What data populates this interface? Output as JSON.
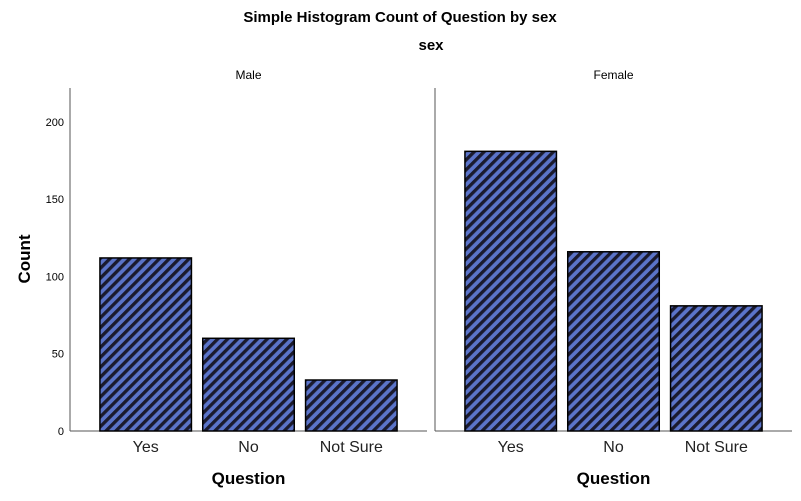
{
  "chart_data": {
    "type": "bar",
    "title": "Simple Histogram Count of Question by sex",
    "facet_title": "sex",
    "categories": [
      "Yes",
      "No",
      "Not Sure"
    ],
    "panels": [
      {
        "label": "Male",
        "values": [
          112,
          60,
          33
        ]
      },
      {
        "label": "Female",
        "values": [
          181,
          116,
          81
        ]
      }
    ],
    "ylabel": "Count",
    "xlabel": "Question",
    "ylim": [
      0,
      222
    ],
    "yticks": [
      0,
      50,
      100,
      150,
      200
    ],
    "grid": false,
    "bar_color": "#5b74c9",
    "hatch_color": "#1a1a2e",
    "pattern": "diagonal-stripes"
  }
}
